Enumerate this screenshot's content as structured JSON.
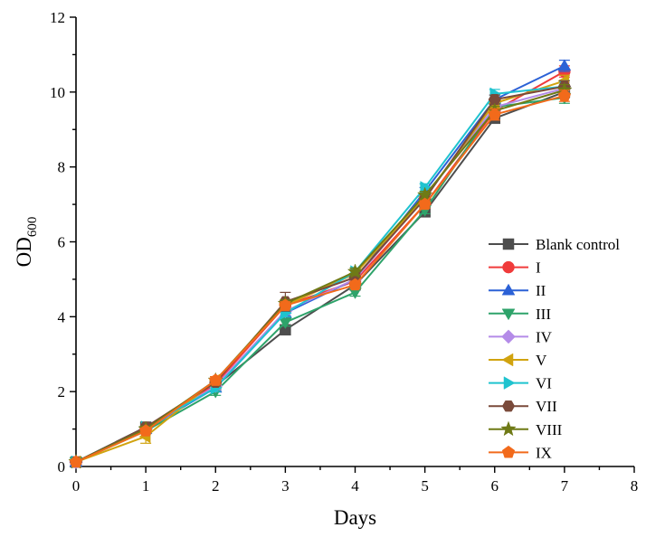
{
  "chart_data": {
    "type": "line",
    "title": "",
    "xlabel": "Days",
    "ylabel": "OD",
    "ylabel_subscript": "600",
    "xlim": [
      0,
      8
    ],
    "ylim": [
      0,
      12
    ],
    "x_ticks": [
      "0",
      "1",
      "2",
      "3",
      "4",
      "5",
      "6",
      "7",
      "8"
    ],
    "y_ticks": [
      "0",
      "2",
      "4",
      "6",
      "8",
      "10",
      "12"
    ],
    "grid": false,
    "legend_position": "right",
    "x": [
      0,
      1,
      2,
      3,
      4,
      5,
      6,
      7
    ],
    "series": [
      {
        "name": "Blank control",
        "color": "#4d4d4d",
        "marker": "square",
        "values": [
          0.12,
          1.05,
          2.15,
          3.65,
          4.85,
          6.8,
          9.3,
          10.0
        ],
        "errors": [
          0.05,
          0.08,
          0.1,
          0.08,
          0.1,
          0.1,
          0.12,
          0.15
        ]
      },
      {
        "name": "I",
        "color": "#f03b3b",
        "marker": "circle",
        "values": [
          0.12,
          1.0,
          2.2,
          4.3,
          4.95,
          7.0,
          9.5,
          10.55
        ],
        "errors": [
          0.05,
          0.08,
          0.1,
          0.1,
          0.1,
          0.1,
          0.12,
          0.15
        ]
      },
      {
        "name": "II",
        "color": "#2b61d6",
        "marker": "triangle-up",
        "values": [
          0.12,
          1.0,
          2.1,
          4.1,
          5.0,
          7.35,
          9.8,
          10.7
        ],
        "errors": [
          0.05,
          0.08,
          0.1,
          0.1,
          0.1,
          0.1,
          0.12,
          0.15
        ]
      },
      {
        "name": "III",
        "color": "#2ea36a",
        "marker": "triangle-down",
        "values": [
          0.12,
          0.95,
          2.0,
          3.85,
          4.65,
          6.85,
          9.6,
          9.85
        ],
        "errors": [
          0.05,
          0.08,
          0.1,
          0.1,
          0.1,
          0.1,
          0.12,
          0.15
        ]
      },
      {
        "name": "IV",
        "color": "#b48be8",
        "marker": "diamond",
        "values": [
          0.12,
          1.0,
          2.15,
          4.15,
          5.0,
          7.2,
          9.6,
          10.1
        ],
        "errors": [
          0.05,
          0.08,
          0.1,
          0.1,
          0.1,
          0.1,
          0.12,
          0.15
        ]
      },
      {
        "name": "V",
        "color": "#d1a30f",
        "marker": "triangle-left",
        "values": [
          0.12,
          0.8,
          2.3,
          4.3,
          5.15,
          7.2,
          9.7,
          10.3
        ],
        "errors": [
          0.05,
          0.18,
          0.1,
          0.1,
          0.1,
          0.1,
          0.12,
          0.15
        ]
      },
      {
        "name": "VI",
        "color": "#1fc3cf",
        "marker": "triangle-right",
        "values": [
          0.12,
          1.05,
          2.1,
          4.1,
          5.2,
          7.45,
          9.95,
          10.15
        ],
        "errors": [
          0.05,
          0.08,
          0.1,
          0.1,
          0.1,
          0.1,
          0.12,
          0.15
        ]
      },
      {
        "name": "VII",
        "color": "#7a4a3a",
        "marker": "hexagon",
        "values": [
          0.12,
          1.05,
          2.25,
          4.4,
          5.05,
          7.15,
          9.8,
          10.15
        ],
        "errors": [
          0.05,
          0.08,
          0.1,
          0.25,
          0.1,
          0.1,
          0.12,
          0.15
        ]
      },
      {
        "name": "VIII",
        "color": "#6f7a16",
        "marker": "star",
        "values": [
          0.12,
          1.0,
          2.3,
          4.35,
          5.2,
          7.25,
          9.5,
          10.05
        ],
        "errors": [
          0.05,
          0.08,
          0.1,
          0.1,
          0.1,
          0.1,
          0.12,
          0.15
        ]
      },
      {
        "name": "IX",
        "color": "#f26a1b",
        "marker": "pentagon",
        "values": [
          0.12,
          0.95,
          2.3,
          4.3,
          4.85,
          7.0,
          9.4,
          9.9
        ],
        "errors": [
          0.05,
          0.08,
          0.1,
          0.1,
          0.1,
          0.1,
          0.15,
          0.15
        ]
      }
    ]
  }
}
